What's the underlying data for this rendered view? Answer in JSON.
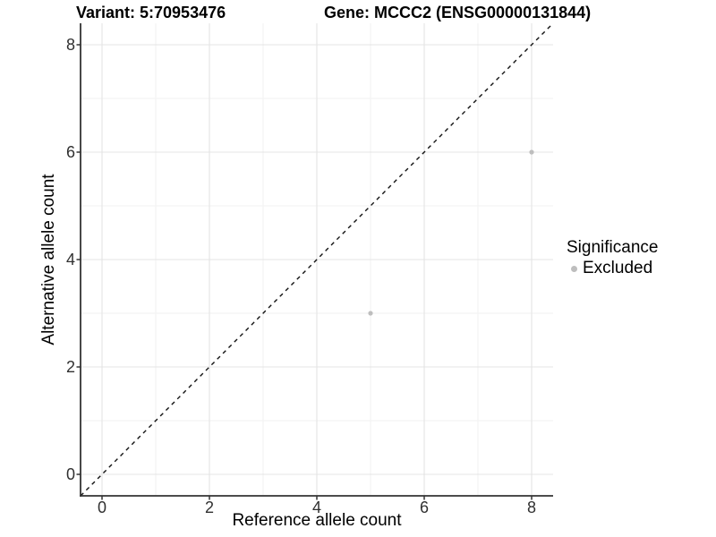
{
  "titles": {
    "variant": "Variant: 5:70953476",
    "gene": "Gene: MCCC2 (ENSG00000131844)"
  },
  "axes": {
    "x_label": "Reference allele count",
    "y_label": "Alternative allele count"
  },
  "legend": {
    "title": "Significance",
    "items": [
      {
        "label": "Excluded",
        "color": "#bebebe"
      }
    ],
    "position": "right"
  },
  "colors": {
    "point": "#bebebe",
    "axis_line": "#333333",
    "tick_mark": "#333333",
    "major_grid": "#e4e4e4",
    "minor_grid": "#f1f1f1",
    "identity_line": "#111111",
    "background": "#ffffff"
  },
  "chart_data": {
    "type": "scatter",
    "title": "Variant: 5:70953476 | Gene: MCCC2 (ENSG00000131844)",
    "xlabel": "Reference allele count",
    "ylabel": "Alternative allele count",
    "xlim": [
      -0.4,
      8.4
    ],
    "ylim": [
      -0.4,
      8.4
    ],
    "x_ticks": [
      0,
      2,
      4,
      6,
      8
    ],
    "y_ticks": [
      0,
      2,
      4,
      6,
      8
    ],
    "x_minor_ticks": [
      1,
      3,
      5,
      7
    ],
    "y_minor_ticks": [
      1,
      3,
      5,
      7
    ],
    "grid": true,
    "legend_position": "right",
    "series": [
      {
        "name": "Excluded",
        "color": "#bebebe",
        "points": [
          {
            "x": 5,
            "y": 3
          },
          {
            "x": 8,
            "y": 6
          }
        ]
      }
    ],
    "reference_line": {
      "style": "dashed",
      "equation": "y = x",
      "from": [
        -0.4,
        -0.4
      ],
      "to": [
        8.4,
        8.4
      ]
    }
  }
}
